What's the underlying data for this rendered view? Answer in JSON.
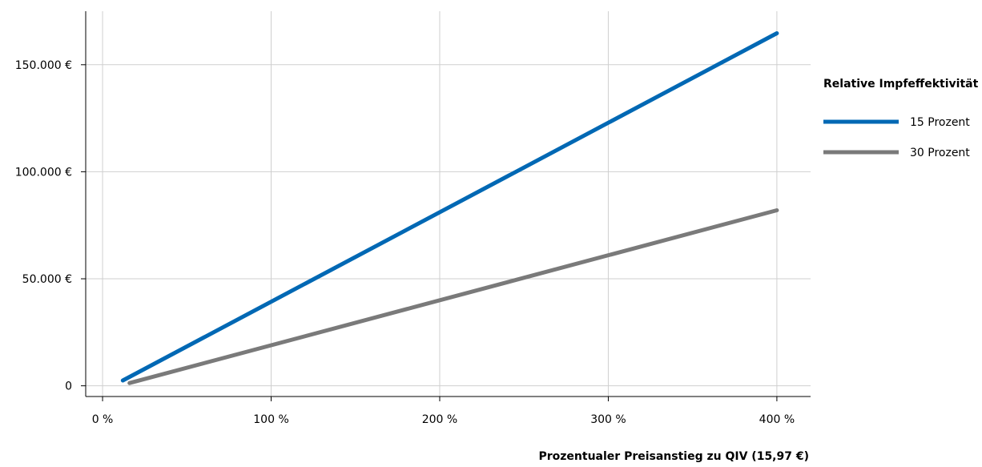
{
  "chart_data": {
    "type": "line",
    "xlabel": "Prozentualer Preisanstieg zu QIV (15,97 €)",
    "ylabel": "",
    "xlim": [
      -10,
      420
    ],
    "ylim": [
      -5000,
      175000
    ],
    "x_ticks": [
      {
        "value": 0,
        "label": "0 %"
      },
      {
        "value": 100,
        "label": "100 %"
      },
      {
        "value": 200,
        "label": "200 %"
      },
      {
        "value": 300,
        "label": "300 %"
      },
      {
        "value": 400,
        "label": "400 %"
      }
    ],
    "y_ticks": [
      {
        "value": 0,
        "label": "0"
      },
      {
        "value": 50000,
        "label": "50.000 €"
      },
      {
        "value": 100000,
        "label": "100.000 €"
      },
      {
        "value": 150000,
        "label": "150.000 €"
      }
    ],
    "grid": true,
    "legend": {
      "title": "Relative Impfeffektivität",
      "placement": "right"
    },
    "series": [
      {
        "name": "15 Prozent",
        "color": "#0068b4",
        "x": [
          12,
          400
        ],
        "y": [
          2500,
          164700
        ]
      },
      {
        "name": "30 Prozent",
        "color": "#7a7a7a",
        "x": [
          16,
          400
        ],
        "y": [
          1300,
          82000
        ]
      }
    ]
  }
}
